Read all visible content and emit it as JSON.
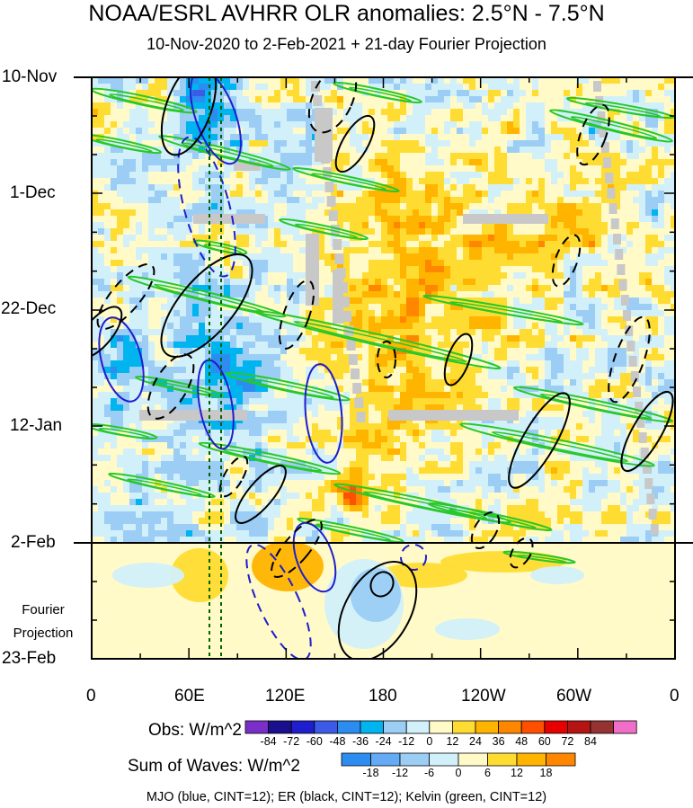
{
  "chart_data": {
    "type": "heatmap",
    "title": "NOAA/ESRL AVHRR OLR anomalies: 2.5°N - 7.5°N",
    "subtitle": "10-Nov-2020 to 2-Feb-2021 + 21-day Fourier Projection",
    "y_ticks": [
      "10-Nov",
      "1-Dec",
      "22-Dec",
      "12-Jan",
      "2-Feb",
      "23-Feb"
    ],
    "x_ticks": [
      "0",
      "60E",
      "120E",
      "180",
      "120W",
      "60W",
      "0"
    ],
    "projection_label": [
      "Fourier",
      "Projection"
    ],
    "obs_colorbar": {
      "label": "Obs: W/m^2",
      "levels": [
        "-84",
        "-72",
        "-60",
        "-48",
        "-36",
        "-24",
        "-12",
        "0",
        "12",
        "24",
        "36",
        "48",
        "60",
        "72",
        "84"
      ],
      "colors": [
        "#7a30c8",
        "#1a0f8c",
        "#1e1ecc",
        "#3c5ae6",
        "#2d8cf0",
        "#00b4f0",
        "#9bcdf5",
        "#d2f0fa",
        "#fffac8",
        "#ffdc32",
        "#ffb400",
        "#ff8700",
        "#ff5000",
        "#e60000",
        "#b41414",
        "#963232",
        "#f06ec8"
      ]
    },
    "waves_colorbar": {
      "label": "Sum of Waves: W/m^2",
      "levels": [
        "-18",
        "-12",
        "-6",
        "0",
        "6",
        "12",
        "18"
      ],
      "colors": [
        "#2d8cf0",
        "#64aaf5",
        "#9bcdf5",
        "#d2f0fa",
        "#fffac8",
        "#ffdc32",
        "#ffb400",
        "#ff8700"
      ]
    },
    "footer": "MJO (blue, CINT=12); ER (black, CINT=12); Kelvin (green, CINT=12)",
    "wave_colors": {
      "mjo": "#1e1ecc",
      "er": "#000000",
      "kelvin": "#28c828",
      "missing": "#c8c8c8",
      "marker": "#006400"
    },
    "marker_lon": [
      "72E",
      "78E"
    ]
  }
}
